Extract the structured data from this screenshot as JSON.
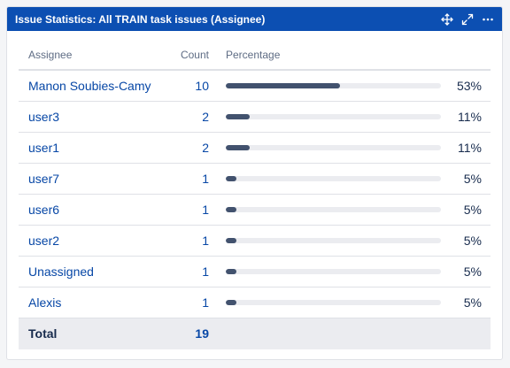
{
  "gadget": {
    "title": "Issue Statistics: All TRAIN task issues (Assignee)"
  },
  "table": {
    "headers": {
      "assignee": "Assignee",
      "count": "Count",
      "percentage": "Percentage"
    },
    "rows": [
      {
        "assignee": "Manon Soubies-Camy",
        "count": "10",
        "percent": "53%",
        "fraction": 0.53
      },
      {
        "assignee": "user3",
        "count": "2",
        "percent": "11%",
        "fraction": 0.11
      },
      {
        "assignee": "user1",
        "count": "2",
        "percent": "11%",
        "fraction": 0.11
      },
      {
        "assignee": "user7",
        "count": "1",
        "percent": "5%",
        "fraction": 0.05
      },
      {
        "assignee": "user6",
        "count": "1",
        "percent": "5%",
        "fraction": 0.05
      },
      {
        "assignee": "user2",
        "count": "1",
        "percent": "5%",
        "fraction": 0.05
      },
      {
        "assignee": "Unassigned",
        "count": "1",
        "percent": "5%",
        "fraction": 0.05
      },
      {
        "assignee": "Alexis",
        "count": "1",
        "percent": "5%",
        "fraction": 0.05
      }
    ],
    "total": {
      "label": "Total",
      "count": "19"
    }
  },
  "colors": {
    "header_bg": "#0c4fb2",
    "link": "#0747a6",
    "bar_fill": "#42526e",
    "bar_track": "#ebecf0"
  },
  "icons": [
    "move-icon",
    "expand-icon",
    "more-icon"
  ]
}
